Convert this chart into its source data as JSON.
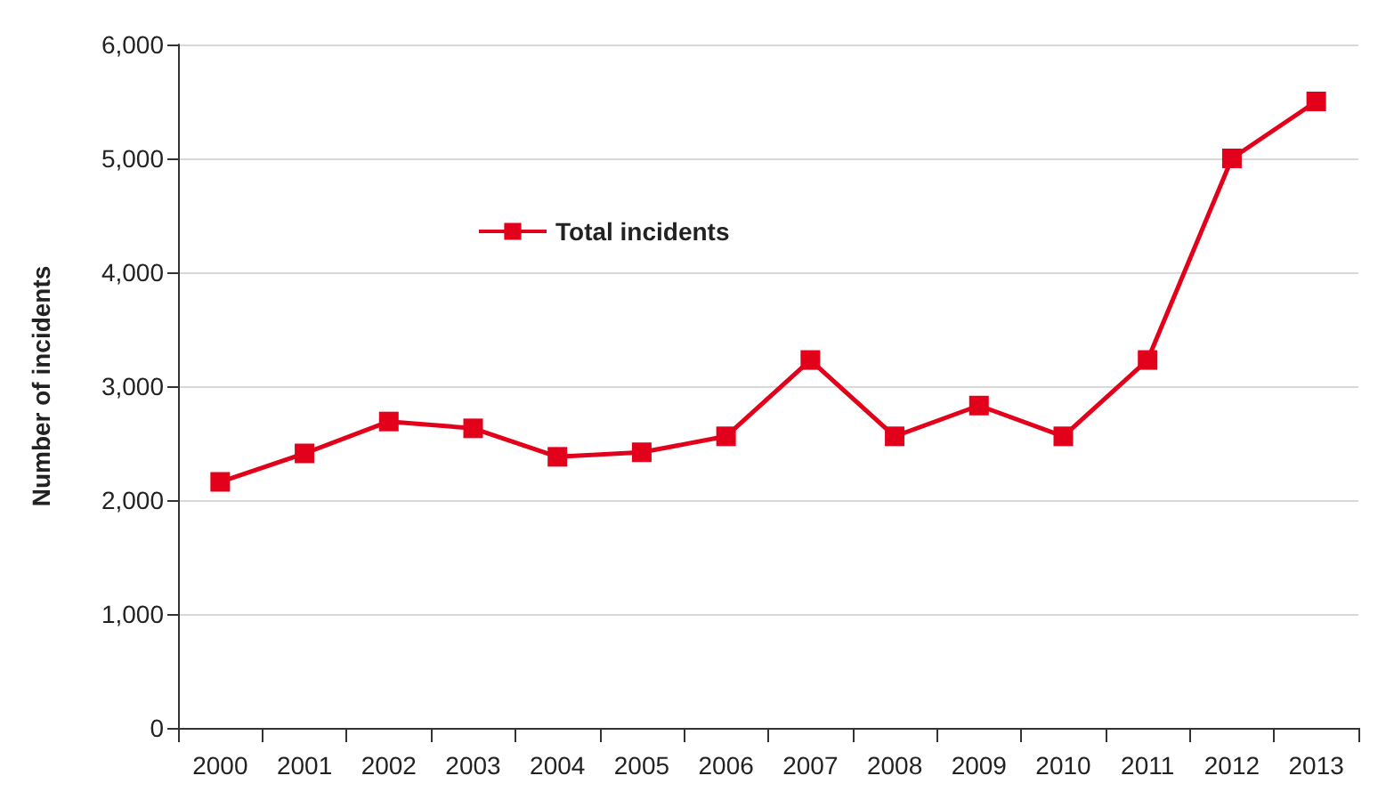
{
  "chart_data": {
    "type": "line",
    "ylabel": "Number of incidents",
    "categories": [
      "2000",
      "2001",
      "2002",
      "2003",
      "2004",
      "2005",
      "2006",
      "2007",
      "2008",
      "2009",
      "2010",
      "2011",
      "2012",
      "2013"
    ],
    "series": [
      {
        "name": "Total incidents",
        "color": "#e3001b",
        "values": [
          2160,
          2410,
          2690,
          2630,
          2380,
          2420,
          2560,
          3230,
          2560,
          2830,
          2560,
          3230,
          5000,
          5500
        ]
      }
    ],
    "ylim": [
      0,
      6000
    ],
    "yticks": [
      {
        "value": 0,
        "label": "0"
      },
      {
        "value": 1000,
        "label": "1,000"
      },
      {
        "value": 2000,
        "label": "2,000"
      },
      {
        "value": 3000,
        "label": "3,000"
      },
      {
        "value": 4000,
        "label": "4,000"
      },
      {
        "value": 5000,
        "label": "5,000"
      },
      {
        "value": 6000,
        "label": "6,000"
      }
    ],
    "grid": "y",
    "legend": "top left",
    "marker": "square",
    "line_style": "solid"
  }
}
